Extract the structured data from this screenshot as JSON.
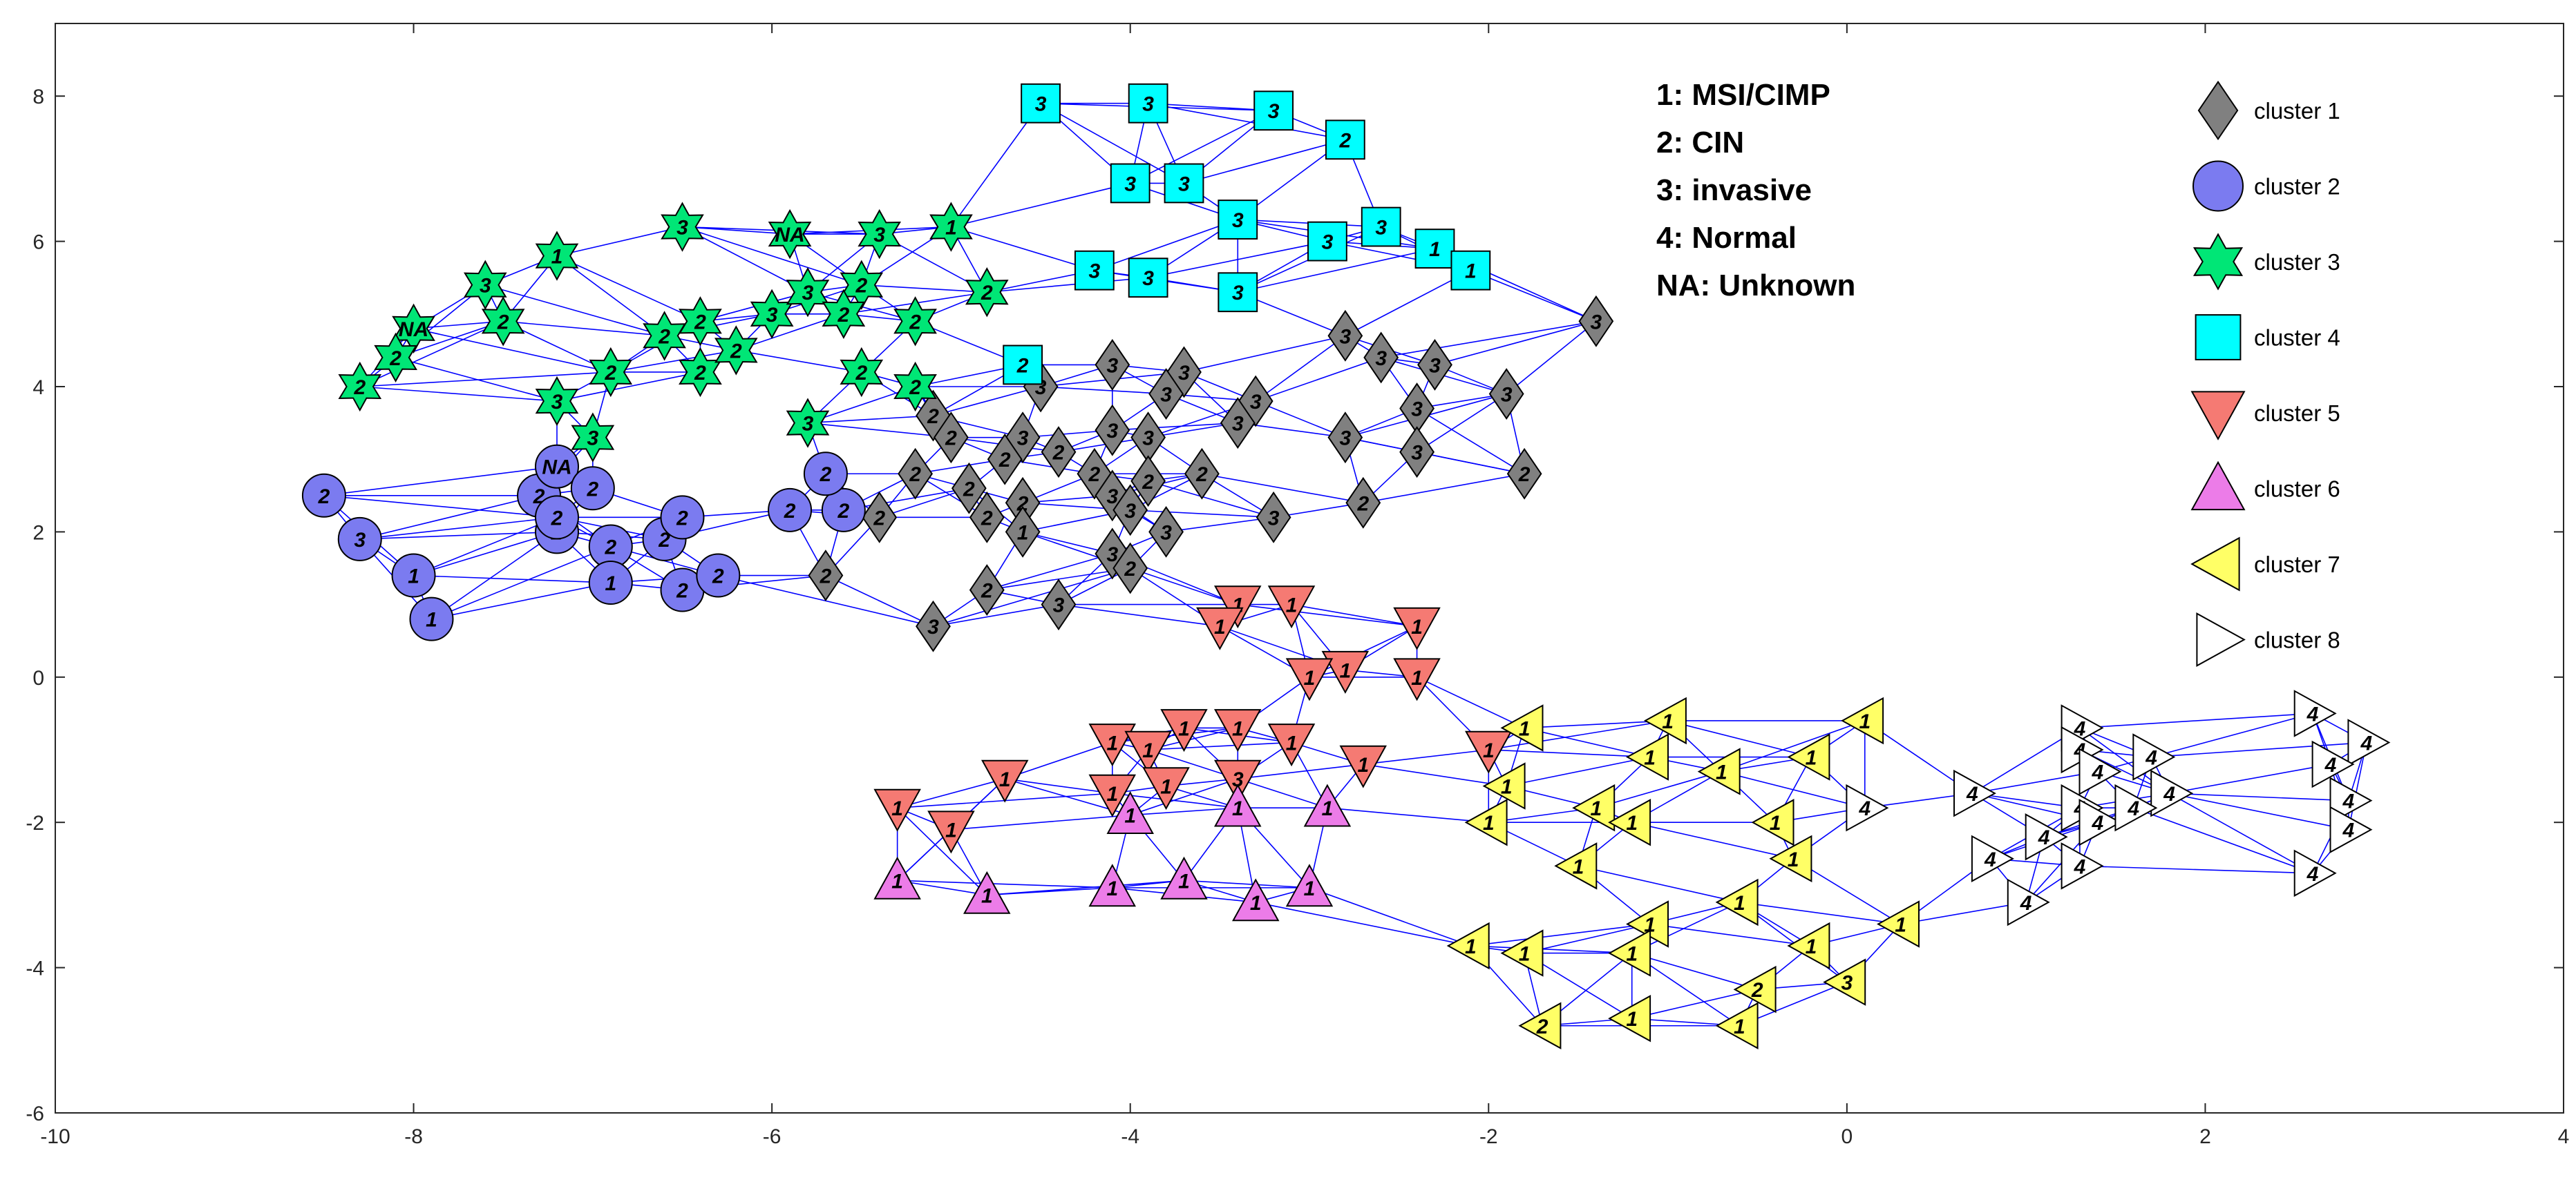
{
  "chart_data": {
    "type": "scatter",
    "title": "",
    "xlabel": "",
    "ylabel": "",
    "xlim": [
      -10,
      4
    ],
    "ylim": [
      -6,
      9
    ],
    "x_ticks": [
      -10,
      -8,
      -6,
      -4,
      -2,
      0,
      2,
      4
    ],
    "y_ticks": [
      -6,
      -4,
      -2,
      0,
      2,
      4,
      6,
      8
    ],
    "grid": false,
    "edge_color": "#0000ff",
    "code_legend": [
      {
        "code": "1",
        "label": "1: MSI/CIMP"
      },
      {
        "code": "2",
        "label": "2: CIN"
      },
      {
        "code": "3",
        "label": "3: invasive"
      },
      {
        "code": "4",
        "label": "4: Normal"
      },
      {
        "code": "NA",
        "label": "NA: Unknown"
      }
    ],
    "legend_position": "top-right",
    "series": [
      {
        "name": "cluster 1",
        "marker": "diamond",
        "color": "#808080",
        "points": [
          [
            -1.4,
            4.9,
            "3"
          ],
          [
            -2.8,
            4.7,
            "3"
          ],
          [
            -2.6,
            4.4,
            "3"
          ],
          [
            -2.3,
            4.3,
            "3"
          ],
          [
            -1.9,
            3.9,
            "3"
          ],
          [
            -2.4,
            3.7,
            "3"
          ],
          [
            -4.1,
            4.3,
            "3"
          ],
          [
            -3.7,
            4.2,
            "3"
          ],
          [
            -4.5,
            4.0,
            "3"
          ],
          [
            -3.8,
            3.9,
            "3"
          ],
          [
            -3.3,
            3.8,
            "3"
          ],
          [
            -2.4,
            3.1,
            "3"
          ],
          [
            -2.8,
            3.3,
            "3"
          ],
          [
            -3.4,
            3.5,
            "3"
          ],
          [
            -4.1,
            3.4,
            "3"
          ],
          [
            -4.6,
            3.3,
            "3"
          ],
          [
            -3.9,
            3.3,
            "3"
          ],
          [
            -5.1,
            3.6,
            "2"
          ],
          [
            -5.0,
            3.3,
            "2"
          ],
          [
            -4.7,
            3.0,
            "2"
          ],
          [
            -4.4,
            3.1,
            "2"
          ],
          [
            -5.2,
            2.8,
            "2"
          ],
          [
            -4.9,
            2.6,
            "2"
          ],
          [
            -4.2,
            2.8,
            "2"
          ],
          [
            -3.9,
            2.7,
            "2"
          ],
          [
            -4.1,
            2.5,
            "3"
          ],
          [
            -4.0,
            2.3,
            "3"
          ],
          [
            -3.6,
            2.8,
            "2"
          ],
          [
            -4.6,
            2.4,
            "2"
          ],
          [
            -4.8,
            2.2,
            "2"
          ],
          [
            -4.6,
            2.0,
            "1"
          ],
          [
            -5.4,
            2.2,
            "2"
          ],
          [
            -3.2,
            2.2,
            "3"
          ],
          [
            -2.7,
            2.4,
            "2"
          ],
          [
            -1.8,
            2.8,
            "2"
          ],
          [
            -3.8,
            2.0,
            "3"
          ],
          [
            -4.1,
            1.7,
            "3"
          ],
          [
            -4.0,
            1.5,
            "2"
          ],
          [
            -4.8,
            1.2,
            "2"
          ],
          [
            -4.4,
            1.0,
            "3"
          ],
          [
            -5.7,
            1.4,
            "2"
          ],
          [
            -5.1,
            0.7,
            "3"
          ]
        ]
      },
      {
        "name": "cluster 2",
        "marker": "circle",
        "color": "#7b7bf0",
        "points": [
          [
            -8.5,
            2.5,
            "2"
          ],
          [
            -8.3,
            1.9,
            "3"
          ],
          [
            -8.0,
            1.4,
            "1"
          ],
          [
            -7.9,
            0.8,
            "1"
          ],
          [
            -7.3,
            2.5,
            "2"
          ],
          [
            -7.2,
            2.9,
            "NA"
          ],
          [
            -7.0,
            2.6,
            "2"
          ],
          [
            -7.2,
            2.0,
            "2"
          ],
          [
            -7.2,
            2.2,
            "2"
          ],
          [
            -6.9,
            1.8,
            "2"
          ],
          [
            -6.6,
            1.9,
            "2"
          ],
          [
            -6.5,
            2.2,
            "2"
          ],
          [
            -6.9,
            1.3,
            "1"
          ],
          [
            -6.5,
            1.2,
            "2"
          ],
          [
            -6.3,
            1.4,
            "2"
          ],
          [
            -5.9,
            2.3,
            "2"
          ],
          [
            -5.6,
            2.3,
            "2"
          ],
          [
            -5.7,
            2.8,
            "2"
          ]
        ]
      },
      {
        "name": "cluster 3",
        "marker": "hexagram",
        "color": "#00e676",
        "points": [
          [
            -8.0,
            4.8,
            "NA"
          ],
          [
            -8.1,
            4.4,
            "2"
          ],
          [
            -8.3,
            4.0,
            "2"
          ],
          [
            -7.6,
            5.4,
            "3"
          ],
          [
            -7.2,
            5.8,
            "1"
          ],
          [
            -7.5,
            4.9,
            "2"
          ],
          [
            -7.2,
            3.8,
            "3"
          ],
          [
            -7.0,
            3.3,
            "3"
          ],
          [
            -6.9,
            4.2,
            "2"
          ],
          [
            -6.6,
            4.7,
            "2"
          ],
          [
            -6.4,
            4.9,
            "2"
          ],
          [
            -6.5,
            6.2,
            "3"
          ],
          [
            -6.4,
            4.2,
            "2"
          ],
          [
            -6.2,
            4.5,
            "2"
          ],
          [
            -6.0,
            5.0,
            "3"
          ],
          [
            -5.9,
            6.1,
            "NA"
          ],
          [
            -5.8,
            5.3,
            "3"
          ],
          [
            -5.5,
            5.4,
            "2"
          ],
          [
            -5.6,
            5.0,
            "2"
          ],
          [
            -5.4,
            6.1,
            "3"
          ],
          [
            -5.0,
            6.2,
            "1"
          ],
          [
            -5.2,
            4.9,
            "2"
          ],
          [
            -4.8,
            5.3,
            "2"
          ],
          [
            -5.5,
            4.2,
            "2"
          ],
          [
            -5.2,
            4.0,
            "2"
          ],
          [
            -5.8,
            3.5,
            "3"
          ]
        ]
      },
      {
        "name": "cluster 4",
        "marker": "square",
        "color": "#00ffff",
        "points": [
          [
            -4.5,
            7.9,
            "3"
          ],
          [
            -3.9,
            7.9,
            "3"
          ],
          [
            -3.2,
            7.8,
            "3"
          ],
          [
            -2.8,
            7.4,
            "2"
          ],
          [
            -4.0,
            6.8,
            "3"
          ],
          [
            -3.7,
            6.8,
            "3"
          ],
          [
            -3.4,
            6.3,
            "3"
          ],
          [
            -2.9,
            6.0,
            "3"
          ],
          [
            -2.6,
            6.2,
            "3"
          ],
          [
            -2.3,
            5.9,
            "1"
          ],
          [
            -2.1,
            5.6,
            "1"
          ],
          [
            -4.2,
            5.6,
            "3"
          ],
          [
            -3.9,
            5.5,
            "3"
          ],
          [
            -3.4,
            5.3,
            "3"
          ],
          [
            -4.6,
            4.3,
            "2"
          ]
        ]
      },
      {
        "name": "cluster 5",
        "marker": "triangle-down",
        "color": "#f57a73",
        "points": [
          [
            -3.4,
            1.0,
            "1"
          ],
          [
            -3.1,
            1.0,
            "1"
          ],
          [
            -3.5,
            0.7,
            "1"
          ],
          [
            -2.4,
            0.7,
            "1"
          ],
          [
            -2.4,
            0.0,
            "1"
          ],
          [
            -2.8,
            0.1,
            "1"
          ],
          [
            -3.0,
            0.0,
            "1"
          ],
          [
            -3.4,
            -0.7,
            "1"
          ],
          [
            -3.1,
            -0.9,
            "1"
          ],
          [
            -2.7,
            -1.2,
            "1"
          ],
          [
            -3.7,
            -0.7,
            "1"
          ],
          [
            -4.1,
            -0.9,
            "1"
          ],
          [
            -3.9,
            -1.0,
            "1"
          ],
          [
            -4.1,
            -1.6,
            "1"
          ],
          [
            -3.8,
            -1.5,
            "1"
          ],
          [
            -3.4,
            -1.4,
            "3"
          ],
          [
            -4.7,
            -1.4,
            "1"
          ],
          [
            -5.3,
            -1.8,
            "1"
          ],
          [
            -5.0,
            -2.1,
            "1"
          ],
          [
            -2.0,
            -1.0,
            "1"
          ]
        ]
      },
      {
        "name": "cluster 6",
        "marker": "triangle-up",
        "color": "#ec7ce8",
        "points": [
          [
            -4.0,
            -1.9,
            "1"
          ],
          [
            -3.4,
            -1.8,
            "1"
          ],
          [
            -2.9,
            -1.8,
            "1"
          ],
          [
            -5.3,
            -2.8,
            "1"
          ],
          [
            -4.8,
            -3.0,
            "1"
          ],
          [
            -4.1,
            -2.9,
            "1"
          ],
          [
            -3.7,
            -2.8,
            "1"
          ],
          [
            -3.3,
            -3.1,
            "1"
          ],
          [
            -3.0,
            -2.9,
            "1"
          ]
        ]
      },
      {
        "name": "cluster 7",
        "marker": "triangle-left",
        "color": "#ffff66",
        "points": [
          [
            -1.8,
            -0.7,
            "1"
          ],
          [
            -1.0,
            -0.6,
            "1"
          ],
          [
            0.1,
            -0.6,
            "1"
          ],
          [
            -1.1,
            -1.1,
            "1"
          ],
          [
            -0.7,
            -1.3,
            "1"
          ],
          [
            -0.2,
            -1.1,
            "1"
          ],
          [
            -1.9,
            -1.5,
            "1"
          ],
          [
            -2.0,
            -2.0,
            "1"
          ],
          [
            -1.4,
            -1.8,
            "1"
          ],
          [
            -1.2,
            -2.0,
            "1"
          ],
          [
            -0.4,
            -2.0,
            "1"
          ],
          [
            -0.3,
            -2.5,
            "1"
          ],
          [
            -1.5,
            -2.6,
            "1"
          ],
          [
            -0.6,
            -3.1,
            "1"
          ],
          [
            -1.1,
            -3.4,
            "1"
          ],
          [
            -2.1,
            -3.7,
            "1"
          ],
          [
            -1.8,
            -3.8,
            "1"
          ],
          [
            -1.2,
            -3.8,
            "1"
          ],
          [
            -0.2,
            -3.7,
            "1"
          ],
          [
            0.3,
            -3.4,
            "1"
          ],
          [
            -0.5,
            -4.3,
            "2"
          ],
          [
            0.0,
            -4.2,
            "3"
          ],
          [
            -1.7,
            -4.8,
            "2"
          ],
          [
            -1.2,
            -4.7,
            "1"
          ],
          [
            -0.6,
            -4.8,
            "1"
          ]
        ]
      },
      {
        "name": "cluster 8",
        "marker": "triangle-right",
        "color": "#ffffff",
        "points": [
          [
            0.1,
            -1.8,
            "4"
          ],
          [
            0.7,
            -1.6,
            "4"
          ],
          [
            1.3,
            -0.7,
            "4"
          ],
          [
            1.3,
            -1.0,
            "4"
          ],
          [
            1.4,
            -1.3,
            "4"
          ],
          [
            1.3,
            -1.8,
            "4"
          ],
          [
            1.1,
            -2.2,
            "4"
          ],
          [
            1.4,
            -2.0,
            "4"
          ],
          [
            1.7,
            -1.1,
            "4"
          ],
          [
            1.8,
            -1.6,
            "4"
          ],
          [
            1.6,
            -1.8,
            "4"
          ],
          [
            2.6,
            -0.5,
            "4"
          ],
          [
            2.9,
            -0.9,
            "4"
          ],
          [
            2.7,
            -1.2,
            "4"
          ],
          [
            2.8,
            -1.7,
            "4"
          ],
          [
            2.8,
            -2.1,
            "4"
          ],
          [
            0.8,
            -2.5,
            "4"
          ],
          [
            1.3,
            -2.6,
            "4"
          ],
          [
            1.0,
            -3.1,
            "4"
          ],
          [
            2.6,
            -2.7,
            "4"
          ]
        ]
      }
    ]
  }
}
